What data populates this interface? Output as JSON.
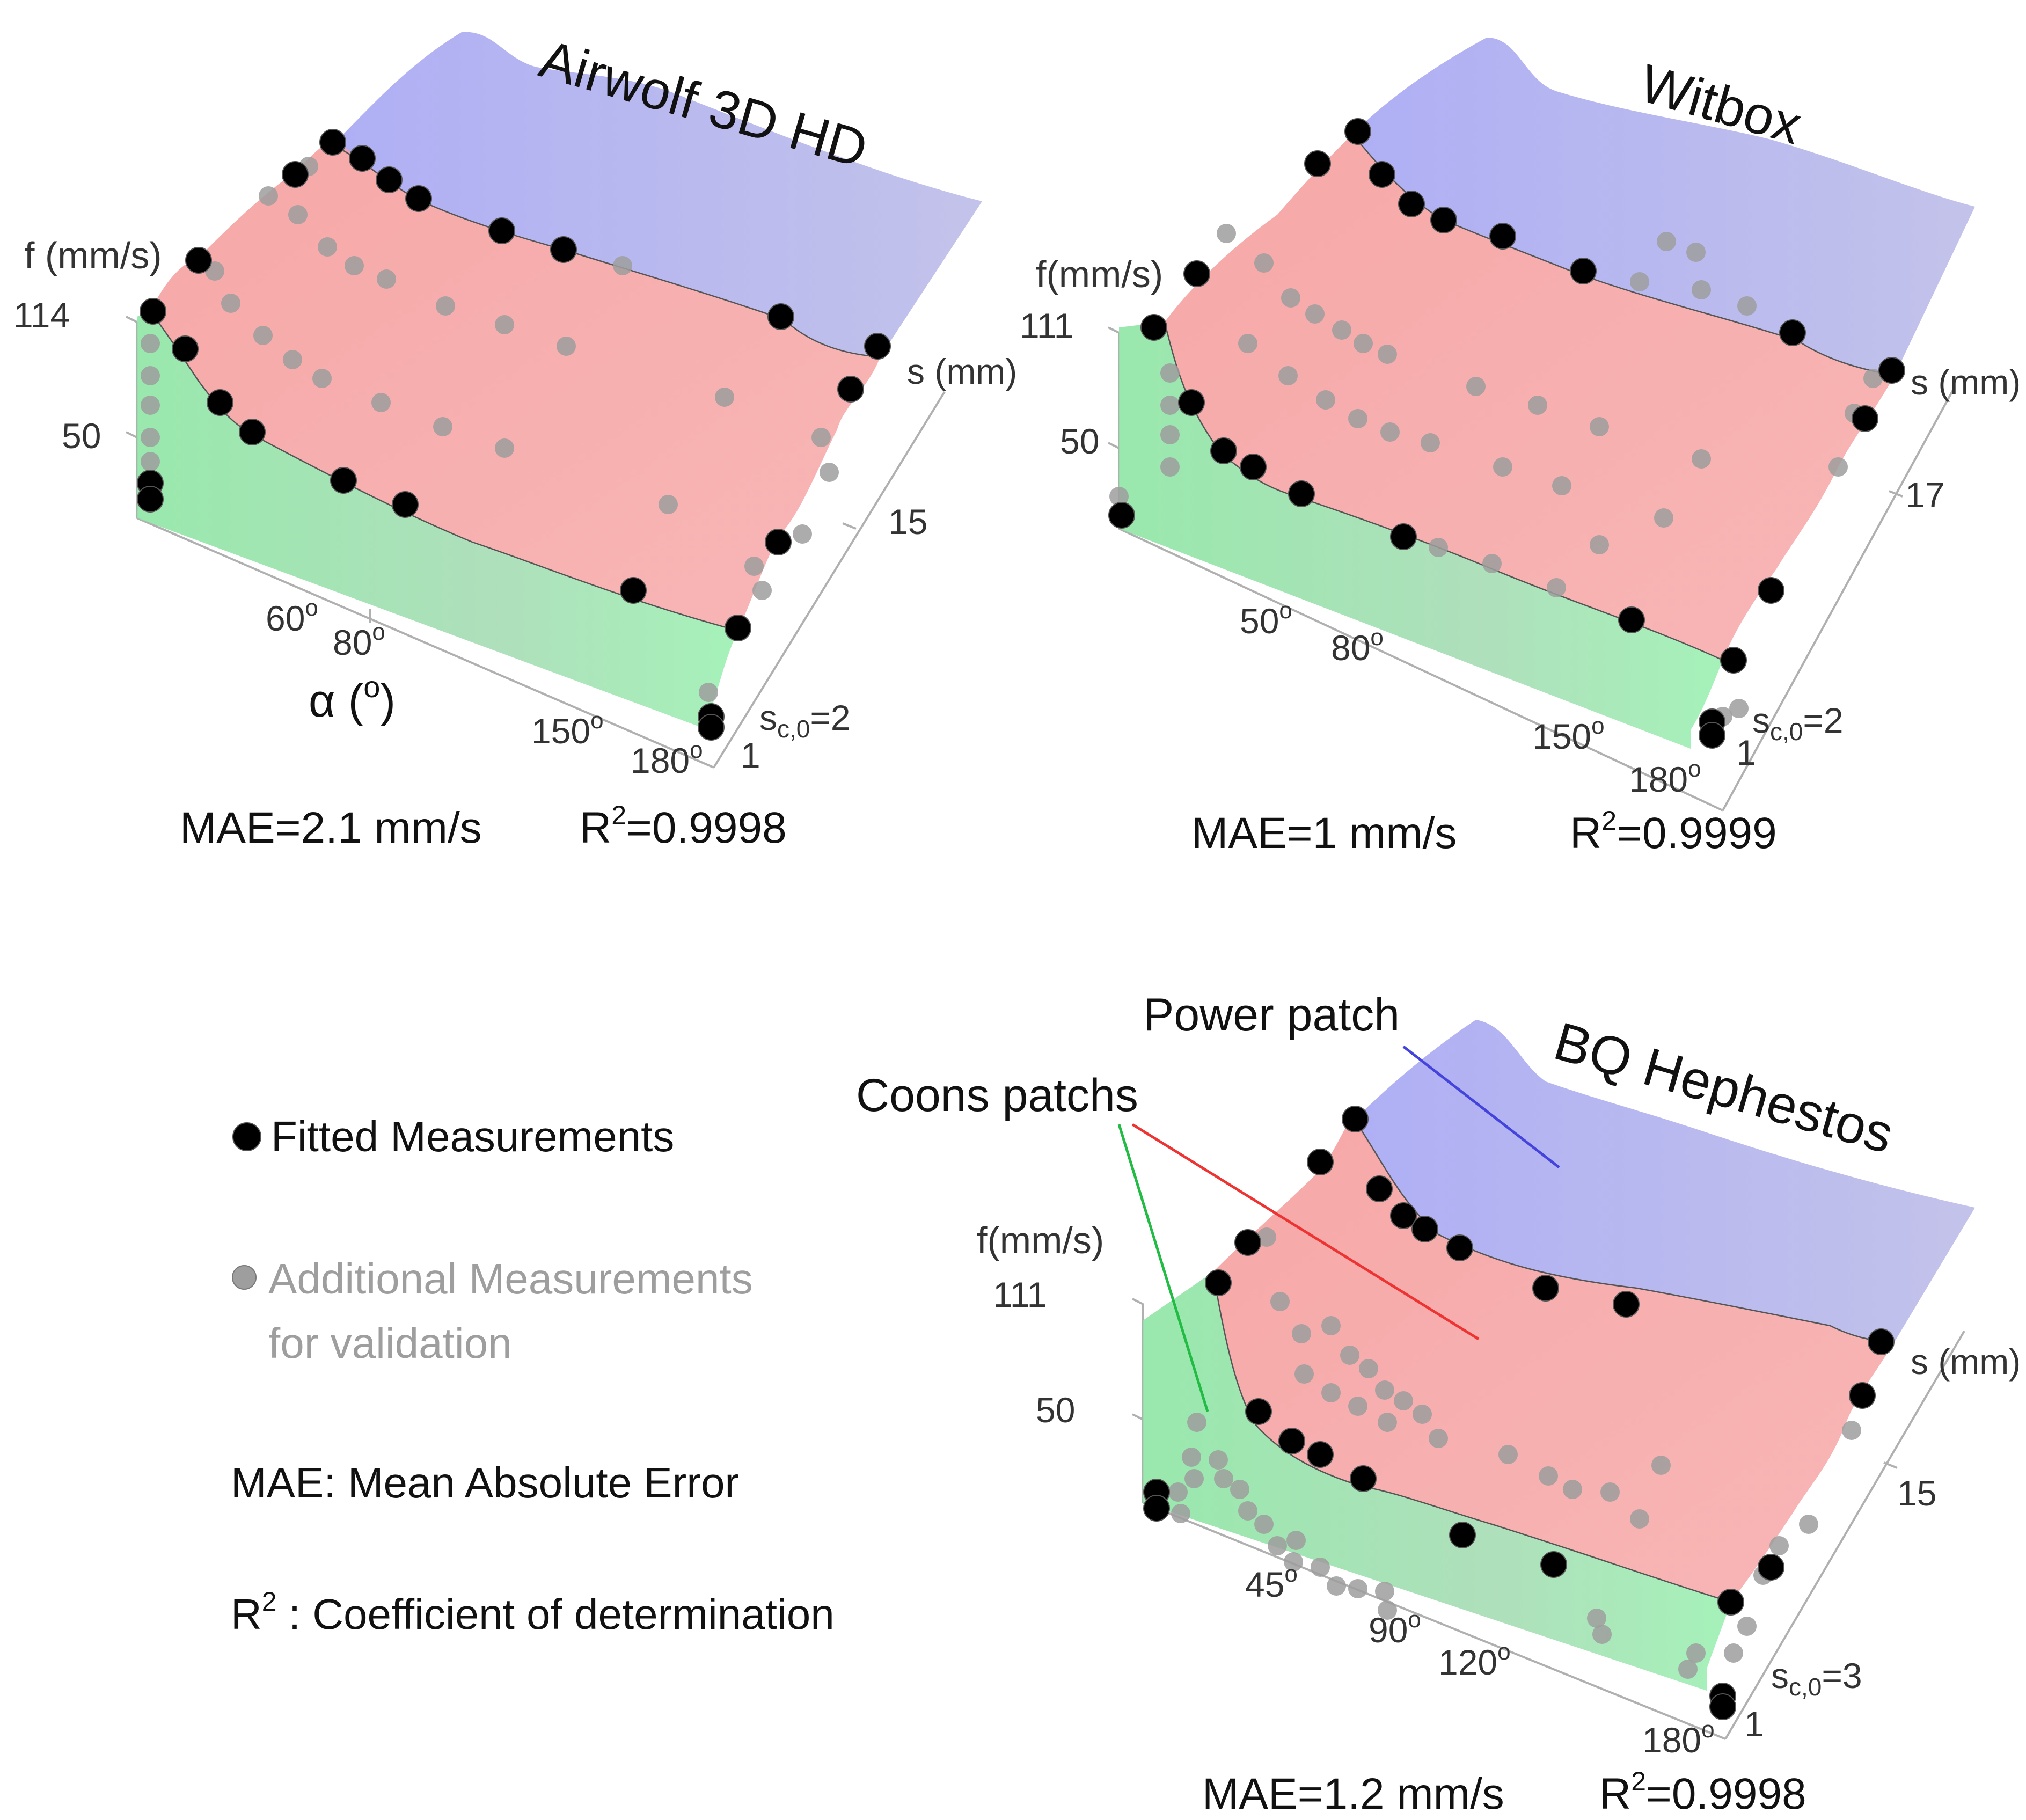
{
  "colors": {
    "power_patch": "#a8a8f0",
    "coons_red": "#f5a3a3",
    "coons_green": "#8fe8a8",
    "fitted": "#000000",
    "validation": "#9e9e9e",
    "axis": "#aaaaaa",
    "annot_red": "#ee3333",
    "annot_green": "#22bb44",
    "annot_blue": "#4444dd"
  },
  "legend": {
    "fitted_label": "Fitted Measurements",
    "validation_line1": "Additional Measurements",
    "validation_line2": "for validation",
    "mae_def": "MAE: Mean Absolute Error",
    "r2_def_prefix": "R",
    "r2_def_sup": "2",
    "r2_def_suffix": " : Coefficient of determination"
  },
  "annotations": {
    "power_patch": "Power patch",
    "coons_patchs": "Coons patchs"
  },
  "chart_data": [
    {
      "type": "surface3d",
      "title": "Airwolf 3D HD",
      "zlabel": "f (mm/s)",
      "ylabel": "s (mm)",
      "xlabel_base": "α (",
      "xlabel_sup": "o",
      "xlabel_close": ")",
      "z_ticks": [
        "114",
        "50"
      ],
      "x_ticks": [
        "60",
        "80",
        "150",
        "180"
      ],
      "deg_sup": "o",
      "y_ticks": [
        "15",
        "1"
      ],
      "sc0_base": "s",
      "sc0_sub": "c,0",
      "sc0_value": "=2",
      "mae": "MAE=2.1 mm/s",
      "r2_prefix": "R",
      "r2_sup": "2",
      "r2_value": "=0.9998"
    },
    {
      "type": "surface3d",
      "title": "Witbox",
      "zlabel": "f(mm/s)",
      "ylabel": "s (mm)",
      "z_ticks": [
        "111",
        "50"
      ],
      "x_ticks": [
        "50",
        "80",
        "150",
        "180"
      ],
      "deg_sup": "o",
      "y_ticks": [
        "17",
        "1"
      ],
      "sc0_base": "s",
      "sc0_sub": "c,0",
      "sc0_value": "=2",
      "mae": "MAE=1 mm/s",
      "r2_prefix": "R",
      "r2_sup": "2",
      "r2_value": "=0.9999"
    },
    {
      "type": "surface3d",
      "title": "BQ Hephestos",
      "zlabel": "f(mm/s)",
      "ylabel": "s (mm)",
      "z_ticks": [
        "111",
        "50"
      ],
      "x_ticks": [
        "45",
        "90",
        "120",
        "180"
      ],
      "deg_sup": "o",
      "y_ticks": [
        "15",
        "1"
      ],
      "sc0_base": "s",
      "sc0_sub": "c,0",
      "sc0_value": "=3",
      "mae": "MAE=1.2 mm/s",
      "r2_prefix": "R",
      "r2_sup": "2",
      "r2_value": "=0.9998"
    }
  ]
}
